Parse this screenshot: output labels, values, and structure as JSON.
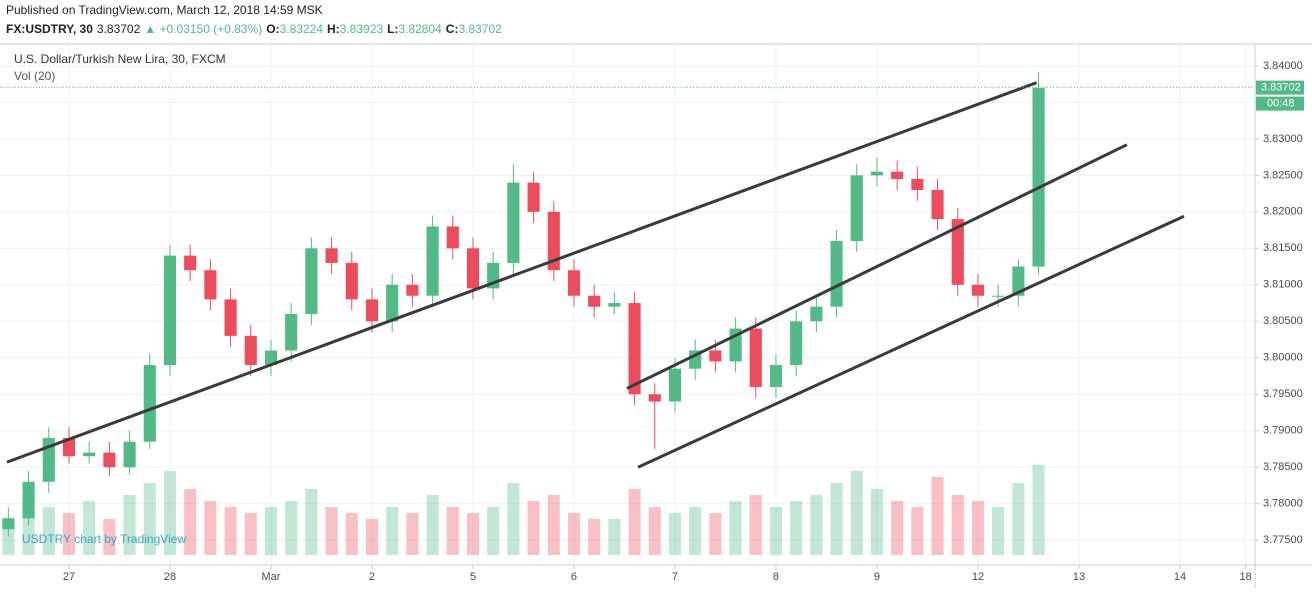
{
  "header": {
    "published": "Published on TradingView.com, March 12, 2018 14:59 MSK",
    "symbol": "FX:USDTRY, 30",
    "last": "3.83702",
    "change": "▲ +0.03150 (+0.83%)",
    "quote": [
      {
        "label": "O:",
        "value": "3.83224"
      },
      {
        "label": "H:",
        "value": "3.83923"
      },
      {
        "label": "L:",
        "value": "3.82804"
      },
      {
        "label": "C:",
        "value": "3.83702"
      }
    ]
  },
  "chart_data": {
    "type": "candlestick",
    "title": "U.S. Dollar/Turkish New Lira, 30, FXCM",
    "subtitle": "Vol (20)",
    "watermark": "USDTRY chart by TradingView",
    "up_color": "#53b987",
    "down_color": "#eb4d5c",
    "x": [
      -0.6,
      -0.4,
      -0.2,
      0,
      0.2,
      0.4,
      0.6,
      0.8,
      1,
      1.2,
      1.4,
      1.6,
      1.8,
      2,
      2.2,
      2.4,
      2.6,
      2.8,
      3,
      3.2,
      3.4,
      3.6,
      3.8,
      4,
      4.2,
      4.4,
      4.6,
      4.8,
      5,
      5.2,
      5.4,
      5.6,
      5.8,
      6,
      6.2,
      6.4,
      6.6,
      6.8,
      7,
      7.2,
      7.4,
      7.6,
      7.8,
      8,
      8.2,
      8.4,
      8.6,
      8.8,
      9,
      9.2,
      9.4,
      9.6
    ],
    "open": [
      3.7765,
      3.778,
      3.783,
      3.789,
      3.7865,
      3.787,
      3.785,
      3.7885,
      3.799,
      3.814,
      3.812,
      3.808,
      3.803,
      3.799,
      3.801,
      3.806,
      3.815,
      3.813,
      3.808,
      3.805,
      3.81,
      3.8085,
      3.818,
      3.815,
      3.8095,
      3.813,
      3.824,
      3.82,
      3.812,
      3.8085,
      3.807,
      3.8075,
      3.795,
      3.794,
      3.7985,
      3.801,
      3.7995,
      3.804,
      3.796,
      3.799,
      3.805,
      3.807,
      3.816,
      3.825,
      3.8255,
      3.8245,
      3.823,
      3.819,
      3.81,
      3.8085,
      3.8085,
      3.8125
    ],
    "high": [
      3.7795,
      3.7845,
      3.7905,
      3.7905,
      3.7885,
      3.7885,
      3.79,
      3.8005,
      3.8155,
      3.8155,
      3.8135,
      3.8095,
      3.8045,
      3.8025,
      3.8075,
      3.8165,
      3.8165,
      3.8145,
      3.8095,
      3.8115,
      3.8115,
      3.8195,
      3.8195,
      3.8165,
      3.8145,
      3.8265,
      3.8255,
      3.8215,
      3.8135,
      3.81,
      3.809,
      3.809,
      3.7965,
      3.8,
      3.8025,
      3.8025,
      3.8055,
      3.8055,
      3.8005,
      3.8065,
      3.8085,
      3.8175,
      3.8265,
      3.8275,
      3.827,
      3.8262,
      3.8245,
      3.8205,
      3.8115,
      3.81,
      3.8135,
      3.8392
    ],
    "low": [
      3.7755,
      3.777,
      3.7815,
      3.7855,
      3.7855,
      3.7838,
      3.784,
      3.7875,
      3.7975,
      3.8105,
      3.8065,
      3.8015,
      3.7975,
      3.7975,
      3.7995,
      3.8045,
      3.8115,
      3.8065,
      3.8035,
      3.8035,
      3.807,
      3.807,
      3.8135,
      3.808,
      3.808,
      3.8115,
      3.8185,
      3.8105,
      3.807,
      3.8055,
      3.806,
      3.7935,
      3.7875,
      3.7925,
      3.797,
      3.798,
      3.798,
      3.7945,
      3.7945,
      3.7975,
      3.8035,
      3.8055,
      3.8145,
      3.8235,
      3.823,
      3.8215,
      3.8175,
      3.8085,
      3.807,
      3.807,
      3.807,
      3.8115
    ],
    "close": [
      3.778,
      3.783,
      3.789,
      3.7865,
      3.787,
      3.785,
      3.7885,
      3.799,
      3.814,
      3.812,
      3.808,
      3.803,
      3.799,
      3.801,
      3.806,
      3.815,
      3.813,
      3.808,
      3.805,
      3.81,
      3.8085,
      3.818,
      3.815,
      3.8095,
      3.813,
      3.824,
      3.82,
      3.812,
      3.8085,
      3.807,
      3.8075,
      3.795,
      3.794,
      3.7985,
      3.801,
      3.7995,
      3.804,
      3.796,
      3.799,
      3.805,
      3.807,
      3.816,
      3.825,
      3.8255,
      3.8245,
      3.823,
      3.819,
      3.81,
      3.8085,
      3.8085,
      3.8125,
      3.837
    ],
    "volume": [
      30,
      55,
      40,
      35,
      45,
      30,
      50,
      60,
      70,
      55,
      45,
      40,
      35,
      40,
      45,
      55,
      40,
      35,
      30,
      40,
      35,
      50,
      40,
      35,
      40,
      60,
      45,
      50,
      35,
      30,
      30,
      55,
      40,
      35,
      40,
      35,
      45,
      50,
      40,
      45,
      50,
      60,
      70,
      55,
      45,
      40,
      65,
      50,
      45,
      40,
      60,
      75
    ],
    "volume_ylim": [
      0,
      100
    ],
    "trendlines": [
      {
        "x1": -0.614,
        "y1": 3.7857,
        "x2": 9.58,
        "y2": 3.8377
      },
      {
        "x1": 5.525,
        "y1": 3.7958,
        "x2": 10.475,
        "y2": 3.8292
      },
      {
        "x1": 5.634,
        "y1": 3.785,
        "x2": 11.04,
        "y2": 3.8194
      }
    ],
    "last_price": 3.83702,
    "countdown": "00:48",
    "xlim": [
      -0.683,
      11.743
    ],
    "ylim": [
      3.7716,
      3.843
    ],
    "xticks": [
      {
        "value": 0,
        "label": "27"
      },
      {
        "value": 1,
        "label": "28"
      },
      {
        "value": 2,
        "label": "Mar"
      },
      {
        "value": 3,
        "label": "2"
      },
      {
        "value": 4,
        "label": "5"
      },
      {
        "value": 5,
        "label": "6"
      },
      {
        "value": 6,
        "label": "7"
      },
      {
        "value": 7,
        "label": "8"
      },
      {
        "value": 8,
        "label": "9"
      },
      {
        "value": 9,
        "label": "12"
      },
      {
        "value": 10,
        "label": "13"
      },
      {
        "value": 11,
        "label": "14"
      },
      {
        "value": 11.65,
        "label": "18"
      }
    ],
    "yticks": [
      {
        "value": 3.84,
        "label": "3.84000"
      },
      {
        "value": 3.835,
        "label": "3.83500"
      },
      {
        "value": 3.83,
        "label": "3.83000"
      },
      {
        "value": 3.825,
        "label": "3.82500"
      },
      {
        "value": 3.82,
        "label": "3.82000"
      },
      {
        "value": 3.815,
        "label": "3.81500"
      },
      {
        "value": 3.81,
        "label": "3.81000"
      },
      {
        "value": 3.805,
        "label": "3.80500"
      },
      {
        "value": 3.8,
        "label": "3.80000"
      },
      {
        "value": 3.795,
        "label": "3.79500"
      },
      {
        "value": 3.79,
        "label": "3.79000"
      },
      {
        "value": 3.785,
        "label": "3.78500"
      },
      {
        "value": 3.78,
        "label": "3.78000"
      },
      {
        "value": 3.775,
        "label": "3.77500"
      }
    ],
    "grid": true
  }
}
